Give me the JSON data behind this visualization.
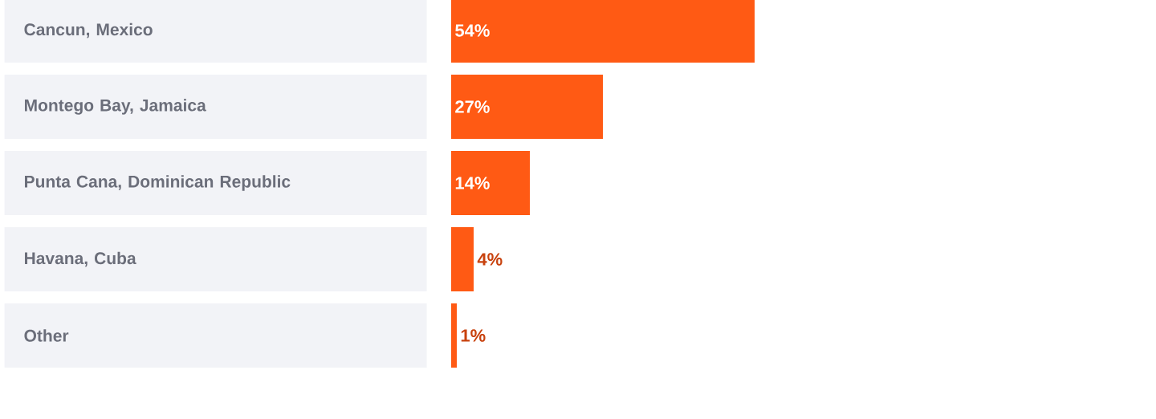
{
  "chart_data": {
    "type": "bar",
    "orientation": "horizontal",
    "categories": [
      "Cancun, Mexico",
      "Montego Bay, Jamaica",
      "Punta Cana, Dominican Republic",
      "Havana, Cuba",
      "Other"
    ],
    "values": [
      54,
      27,
      14,
      4,
      1
    ],
    "value_labels": [
      "54%",
      "27%",
      "14%",
      "4%",
      "1%"
    ],
    "color": "#ff5a14"
  }
}
